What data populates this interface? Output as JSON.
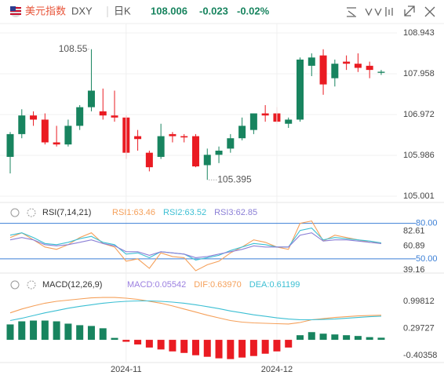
{
  "header": {
    "name": "美元指数",
    "symbol": "DXY",
    "period": "日K",
    "price": "108.006",
    "change": "-0.023",
    "change_pct": "-0.02%"
  },
  "chart_data": [
    {
      "type": "candlestick",
      "categories": [
        null,
        null,
        null,
        null,
        null,
        null,
        null,
        null,
        null,
        null,
        "2024-11",
        null,
        null,
        null,
        null,
        null,
        null,
        null,
        null,
        null,
        null,
        null,
        null,
        "2024-12",
        null,
        null,
        null,
        null,
        null,
        null,
        null,
        null,
        null
      ],
      "open": [
        105.95,
        106.5,
        106.95,
        106.85,
        106.3,
        106.25,
        106.7,
        107.15,
        107.05,
        106.95,
        106.9,
        106.45,
        106.05,
        105.95,
        106.5,
        106.45,
        106.45,
        105.75,
        106.0,
        106.15,
        106.4,
        106.6,
        107.0,
        107.0,
        106.75,
        106.85,
        108.15,
        108.4,
        107.85,
        108.25,
        108.2,
        108.15,
        107.98
      ],
      "high": [
        106.55,
        107.1,
        107.05,
        107.0,
        106.7,
        106.85,
        107.2,
        108.55,
        107.6,
        107.55,
        106.95,
        106.6,
        106.1,
        106.75,
        106.55,
        106.5,
        106.5,
        106.15,
        106.2,
        106.5,
        106.9,
        107.0,
        107.2,
        107.15,
        106.9,
        108.35,
        108.45,
        108.549,
        108.3,
        108.4,
        108.45,
        108.25,
        108.05
      ],
      "low": [
        105.55,
        106.4,
        106.7,
        106.25,
        106.2,
        106.2,
        106.6,
        107.05,
        106.85,
        106.8,
        105.9,
        106.1,
        105.6,
        105.9,
        106.3,
        106.3,
        105.7,
        105.395,
        105.8,
        106.05,
        106.35,
        106.5,
        106.8,
        106.75,
        106.65,
        106.8,
        107.9,
        107.45,
        107.65,
        108.05,
        108.0,
        107.85,
        107.93
      ],
      "close": [
        106.5,
        106.95,
        106.85,
        106.3,
        106.25,
        106.7,
        107.15,
        107.55,
        106.95,
        106.9,
        106.05,
        106.38,
        105.7,
        106.45,
        106.45,
        106.42,
        105.72,
        106.0,
        106.1,
        106.4,
        106.7,
        107.0,
        106.95,
        106.8,
        106.85,
        108.3,
        108.35,
        107.7,
        108.2,
        108.2,
        108.1,
        108.05,
        108.006
      ],
      "up_color": "#18845f",
      "down_color": "#ea1b22",
      "ylim": [
        105.001,
        108.943
      ],
      "yticks": [
        108.943,
        107.958,
        106.972,
        105.986,
        105.001
      ],
      "grid": true
    },
    {
      "type": "line",
      "title": "RSI(7,14,21)",
      "series": [
        {
          "name": "RSI1:63.46",
          "color": "#f5a05a",
          "values": [
            68,
            72,
            66,
            60,
            58,
            62,
            68,
            72,
            63,
            60,
            48,
            50,
            42,
            55,
            52,
            51,
            40,
            45,
            48,
            55,
            60,
            66,
            64,
            60,
            58,
            80,
            82,
            65,
            70,
            68,
            66,
            64,
            63.46
          ]
        },
        {
          "name": "RSI2:63.52",
          "color": "#3cbfd3",
          "values": [
            70,
            72,
            68,
            63,
            62,
            64,
            67,
            69,
            64,
            62,
            54,
            55,
            51,
            56,
            55,
            54,
            49,
            51,
            53,
            57,
            60,
            63,
            62,
            60,
            60,
            74,
            76,
            66,
            68,
            67,
            66,
            65,
            63.52
          ]
        },
        {
          "name": "RSI3:62.85",
          "color": "#8b7fd6",
          "values": [
            66,
            68,
            66,
            62,
            61,
            62,
            64,
            66,
            63,
            61,
            56,
            56,
            53,
            56,
            55,
            54,
            51,
            52,
            54,
            56,
            58,
            61,
            60,
            60,
            60,
            70,
            72,
            65,
            66,
            66,
            65,
            64,
            62.85
          ]
        }
      ],
      "levels": [
        {
          "value": 80,
          "label": "80.00"
        },
        {
          "value": 50,
          "label": "50.00"
        }
      ],
      "level_color": "#3b7fd6",
      "ylim": [
        38,
        91
      ],
      "yticks": [
        82.61,
        60.89,
        39.16
      ]
    },
    {
      "type": "macd",
      "title": "MACD(12,26,9)",
      "series": [
        {
          "name": "MACD:0.05542",
          "color": "#9b7fe0",
          "up_color": "#18845f",
          "down_color": "#ea1b22",
          "values": [
            0.4,
            0.48,
            0.5,
            0.5,
            0.48,
            0.42,
            0.38,
            0.36,
            0.3,
            0.05,
            -0.05,
            -0.12,
            -0.2,
            -0.25,
            -0.3,
            -0.34,
            -0.4,
            -0.44,
            -0.48,
            -0.5,
            -0.46,
            -0.42,
            -0.36,
            -0.3,
            -0.2,
            0.12,
            0.2,
            0.16,
            0.14,
            0.12,
            0.1,
            0.07,
            0.05542
          ]
        },
        {
          "name": "DIF:0.63970",
          "color": "#f5a05a",
          "values": [
            0.7,
            0.8,
            0.88,
            0.95,
            1.0,
            1.03,
            1.06,
            1.09,
            1.1,
            1.1,
            1.08,
            1.05,
            1.0,
            0.95,
            0.88,
            0.8,
            0.72,
            0.64,
            0.57,
            0.5,
            0.46,
            0.44,
            0.43,
            0.42,
            0.41,
            0.45,
            0.52,
            0.55,
            0.58,
            0.6,
            0.62,
            0.63,
            0.6397
          ]
        },
        {
          "name": "DEA:0.61199",
          "color": "#3cbfd3",
          "values": [
            0.5,
            0.56,
            0.63,
            0.7,
            0.76,
            0.82,
            0.87,
            0.91,
            0.95,
            0.98,
            1.0,
            1.01,
            1.01,
            1.0,
            0.98,
            0.95,
            0.91,
            0.86,
            0.81,
            0.75,
            0.7,
            0.65,
            0.61,
            0.57,
            0.54,
            0.52,
            0.52,
            0.53,
            0.54,
            0.56,
            0.58,
            0.6,
            0.61199
          ]
        }
      ],
      "ylim": [
        -0.65,
        1.59
      ],
      "yticks": [
        0.99812,
        0.29727,
        -0.40358
      ]
    }
  ]
}
